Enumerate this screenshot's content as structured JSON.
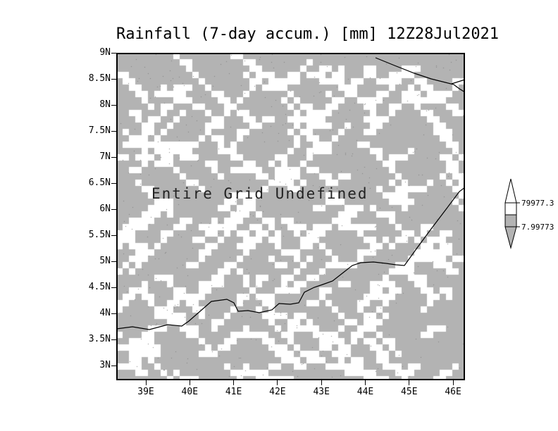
{
  "chart_data": {
    "type": "heatmap",
    "title": "Rainfall (7-day accum.) [mm] 12Z28Jul2021",
    "annotation": "Entire Grid Undefined",
    "x_ticks": [
      "39E",
      "40E",
      "41E",
      "42E",
      "43E",
      "44E",
      "45E",
      "46E"
    ],
    "y_ticks": [
      "9N",
      "8.5N",
      "8N",
      "7.5N",
      "7N",
      "6.5N",
      "6N",
      "5.5N",
      "5N",
      "4.5N",
      "4N",
      "3.5N",
      "3N"
    ],
    "xlabel": "",
    "ylabel": "",
    "values": "entire grid undefined (no defined rainfall values)",
    "legend_position": "right",
    "grid": "off",
    "colorbar": {
      "labels": [
        "79977.3",
        "7.99773"
      ],
      "segment_colors": [
        "#ffffff",
        "#ffffff",
        "#b3b3b3",
        "#b3b3b3"
      ]
    },
    "colors": {
      "background_gray": "#b3b3b3",
      "undefined_white": "#ffffff",
      "line_black": "#000000"
    }
  }
}
